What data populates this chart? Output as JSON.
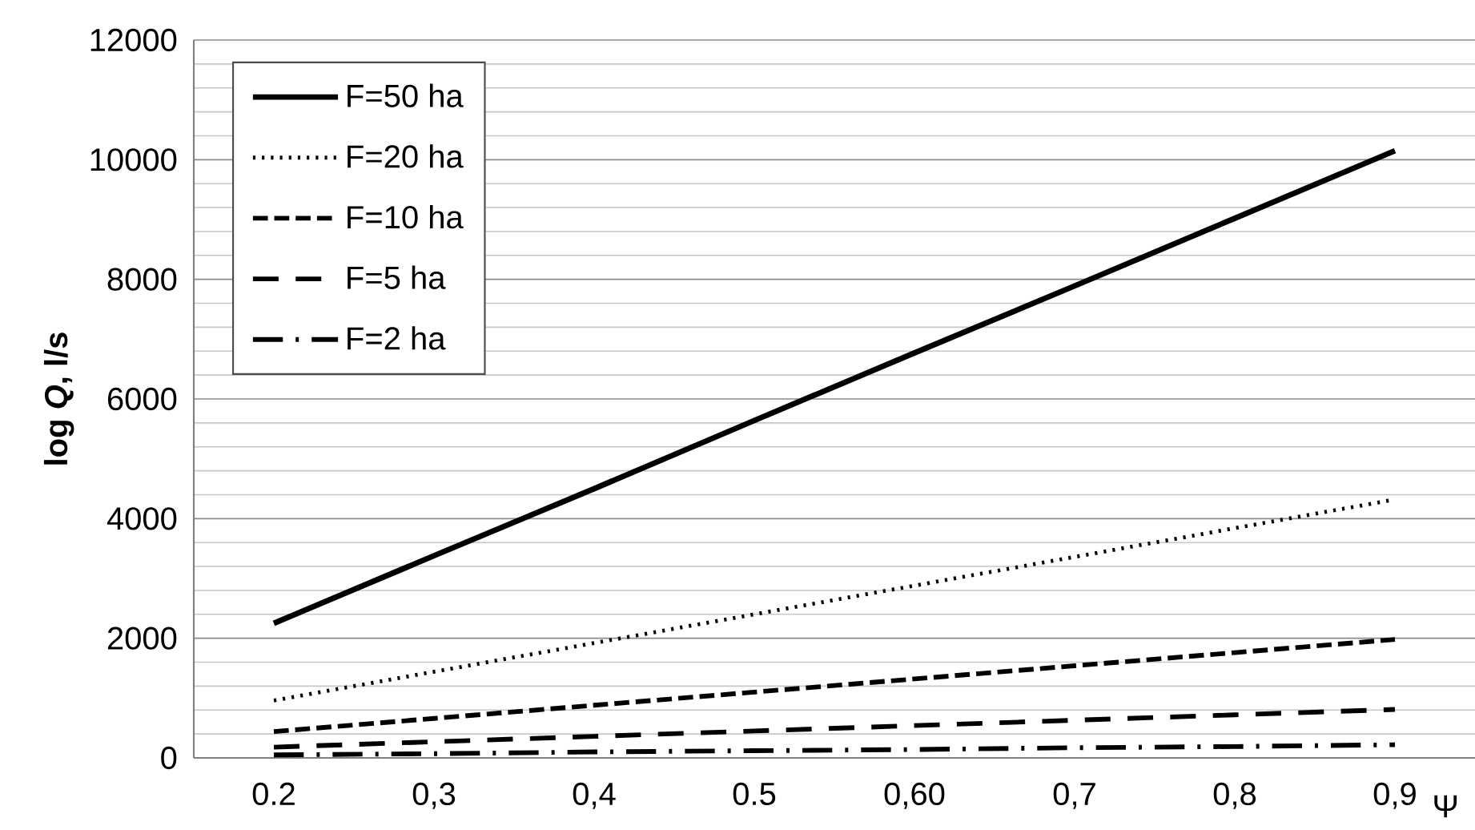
{
  "chart_data": {
    "type": "line",
    "xlabel": "Ψ",
    "ylabel": "log *Q*, l/s",
    "categories": [
      "0.2",
      "0,3",
      "0,4",
      "0.5",
      "0,60",
      "0,7",
      "0,8",
      "0,9"
    ],
    "series": [
      {
        "name": "F=50 ha",
        "color": "#000000",
        "line_style": "solid",
        "values": [
          2250,
          3380,
          4500,
          5640,
          6770,
          7890,
          9020,
          10150
        ]
      },
      {
        "name": "F=20 ha",
        "color": "#000000",
        "line_style": "dotted",
        "values": [
          960,
          1440,
          1920,
          2400,
          2880,
          3360,
          3840,
          4320
        ]
      },
      {
        "name": "F=10 ha",
        "color": "#000000",
        "line_style": "dashed",
        "values": [
          440,
          660,
          880,
          1100,
          1320,
          1540,
          1760,
          1980
        ]
      },
      {
        "name": "F=5 ha",
        "color": "#000000",
        "line_style": "long dashed",
        "values": [
          180,
          270,
          360,
          450,
          540,
          630,
          720,
          810
        ]
      },
      {
        "name": "F=2 ha",
        "color": "#000000",
        "line_style": "dash dot",
        "values": [
          50,
          70,
          100,
          120,
          140,
          170,
          190,
          220
        ]
      }
    ],
    "ylim": [
      0,
      12000
    ],
    "yticks": [
      0,
      2000,
      4000,
      6000,
      8000,
      10000,
      12000
    ],
    "grid": "y",
    "legend": "top left",
    "marker": "none"
  }
}
